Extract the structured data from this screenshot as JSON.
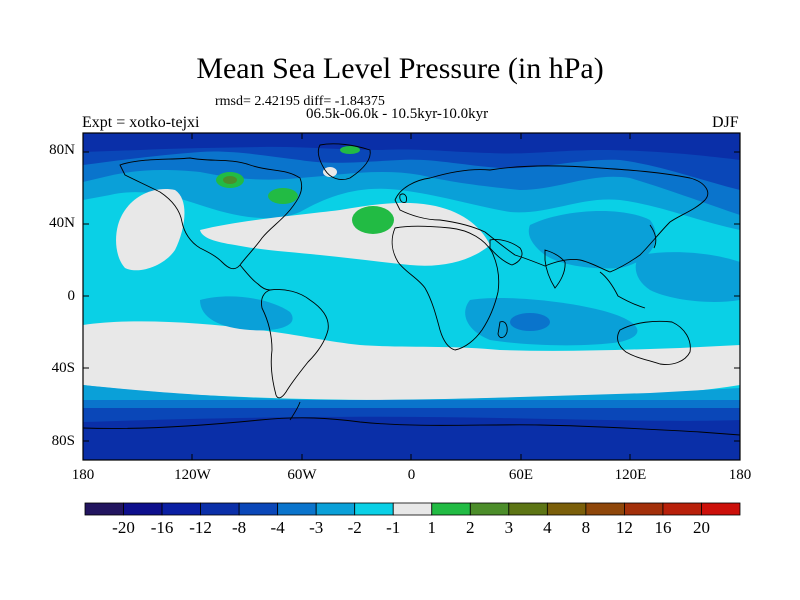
{
  "title": "Mean Sea Level Pressure (in hPa)",
  "stats_line": "rmsd= 2.42195 diff= -1.84375",
  "period_line": "06.5k-06.0k - 10.5kyr-10.0kyr",
  "experiment": "Expt = xotko-tejxi",
  "season": "DJF",
  "lat_ticks": [
    {
      "label": "80N",
      "lat": 80
    },
    {
      "label": "40N",
      "lat": 40
    },
    {
      "label": "0",
      "lat": 0
    },
    {
      "label": "40S",
      "lat": -40
    },
    {
      "label": "80S",
      "lat": -80
    }
  ],
  "lon_ticks": [
    {
      "label": "180",
      "lon": -180
    },
    {
      "label": "120W",
      "lon": -120
    },
    {
      "label": "60W",
      "lon": -60
    },
    {
      "label": "0",
      "lon": 0
    },
    {
      "label": "60E",
      "lon": 60
    },
    {
      "label": "120E",
      "lon": 120
    },
    {
      "label": "180",
      "lon": 180
    }
  ],
  "colorbar": {
    "colors": [
      "#22155f",
      "#0e0f8c",
      "#0a1fa3",
      "#0a2fa8",
      "#0a47b8",
      "#0a74cc",
      "#0aa0d8",
      "#0ad0e6",
      "#e8e8e8",
      "#22bb44",
      "#4c8d2a",
      "#5d7515",
      "#7b5f0a",
      "#8f470a",
      "#a3300a",
      "#b8200a",
      "#cc100a"
    ],
    "labels": [
      "-20",
      "-16",
      "-12",
      "-8",
      "-4",
      "-3",
      "-2",
      "-1",
      "1",
      "2",
      "3",
      "4",
      "8",
      "12",
      "16",
      "20"
    ]
  },
  "legend_colors": {
    "below_-8": "#0a2fa8",
    "-8_to_-4": "#0a47b8",
    "-4_to_-3": "#0a74cc",
    "-3_to_-2": "#0aa0d8",
    "-2_to_-1": "#0ad0e6",
    "-1_to_1": "#e8e8e8",
    "1_to_2": "#22bb44",
    "2_to_3": "#4c8d2a"
  }
}
